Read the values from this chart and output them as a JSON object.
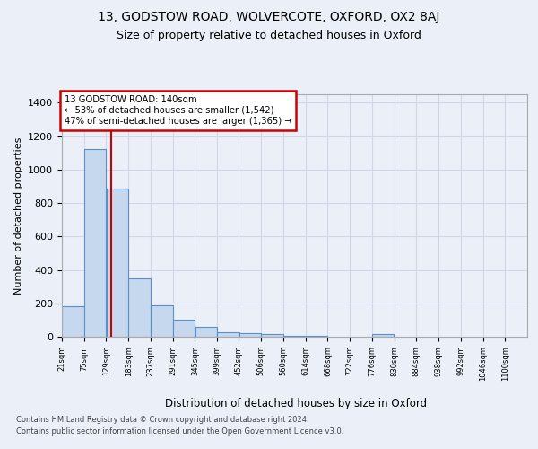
{
  "title1": "13, GODSTOW ROAD, WOLVERCOTE, OXFORD, OX2 8AJ",
  "title2": "Size of property relative to detached houses in Oxford",
  "xlabel": "Distribution of detached houses by size in Oxford",
  "ylabel": "Number of detached properties",
  "footnote1": "Contains HM Land Registry data © Crown copyright and database right 2024.",
  "footnote2": "Contains public sector information licensed under the Open Government Licence v3.0.",
  "annotation_line1": "13 GODSTOW ROAD: 140sqm",
  "annotation_line2": "← 53% of detached houses are smaller (1,542)",
  "annotation_line3": "47% of semi-detached houses are larger (1,365) →",
  "bar_left_edges": [
    21,
    75,
    129,
    183,
    237,
    291,
    345,
    399,
    452,
    506,
    560,
    614,
    668,
    722,
    776,
    830,
    884,
    938,
    992,
    1046
  ],
  "bar_heights": [
    185,
    1125,
    885,
    350,
    190,
    100,
    60,
    25,
    20,
    15,
    8,
    5,
    0,
    0,
    15,
    0,
    0,
    0,
    0,
    0
  ],
  "bin_width": 54,
  "bar_color": "#c5d8ee",
  "bar_edge_color": "#5b8fc9",
  "red_line_x": 140,
  "ylim": [
    0,
    1450
  ],
  "xlim": [
    21,
    1154
  ],
  "xtick_labels": [
    "21sqm",
    "75sqm",
    "129sqm",
    "183sqm",
    "237sqm",
    "291sqm",
    "345sqm",
    "399sqm",
    "452sqm",
    "506sqm",
    "560sqm",
    "614sqm",
    "668sqm",
    "722sqm",
    "776sqm",
    "830sqm",
    "884sqm",
    "938sqm",
    "992sqm",
    "1046sqm",
    "1100sqm"
  ],
  "xtick_positions": [
    21,
    75,
    129,
    183,
    237,
    291,
    345,
    399,
    452,
    506,
    560,
    614,
    668,
    722,
    776,
    830,
    884,
    938,
    992,
    1046,
    1100
  ],
  "ytick_positions": [
    0,
    200,
    400,
    600,
    800,
    1000,
    1200,
    1400
  ],
  "background_color": "#eaeff8",
  "plot_bg_color": "#eaeff8",
  "grid_color": "#d0d8e8",
  "title1_fontsize": 10,
  "title2_fontsize": 9,
  "annotation_box_color": "#ffffff",
  "annotation_box_edge": "#cc0000",
  "red_line_color": "#cc0000"
}
